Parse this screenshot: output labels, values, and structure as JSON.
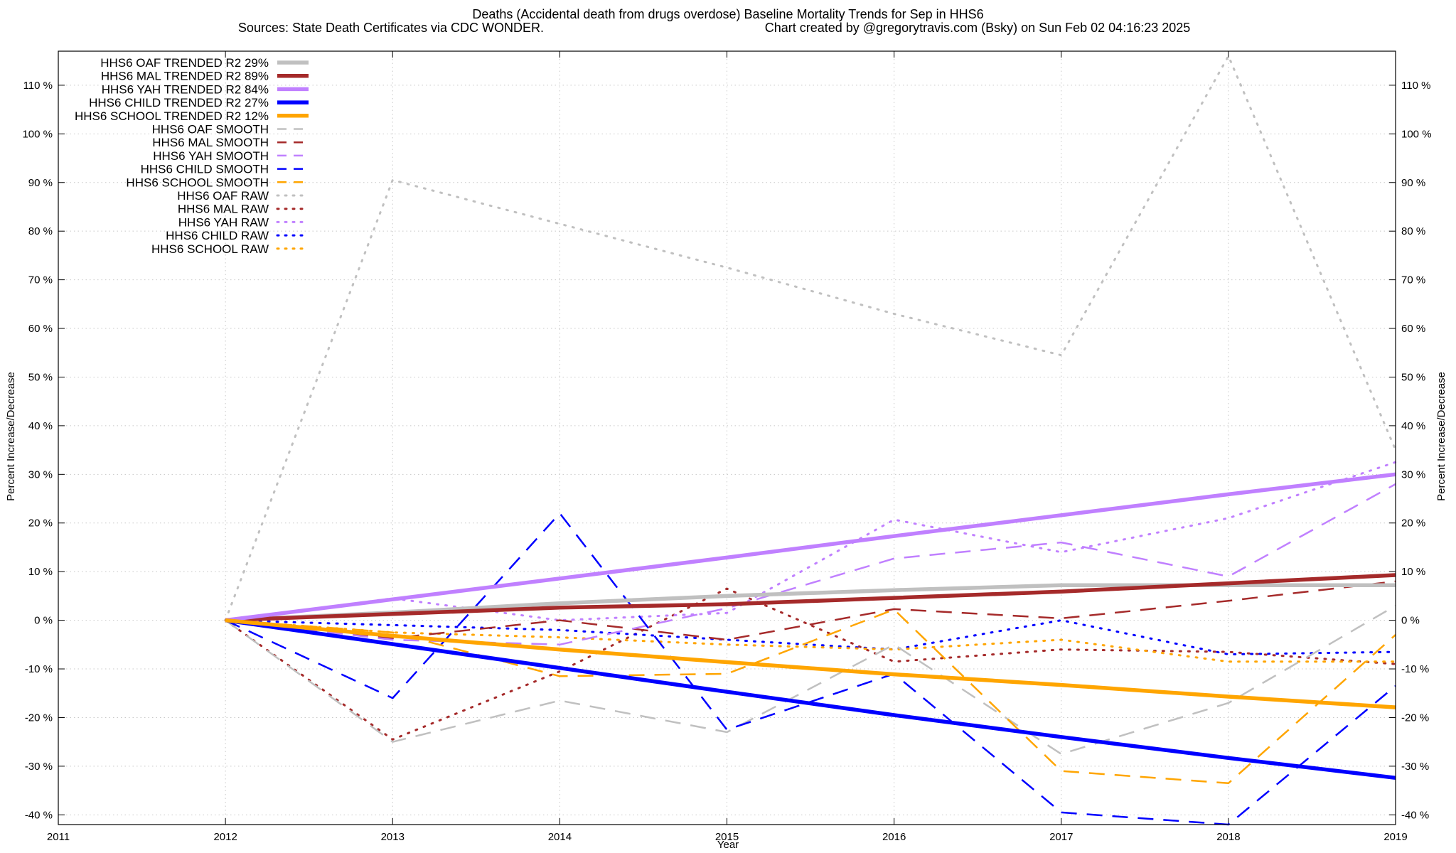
{
  "chart_data": {
    "type": "line",
    "title": "Deaths (Accidental death from drugs overdose)  Baseline Mortality Trends for Sep in HHS6",
    "subtitle_left": "Sources: State Death Certificates via CDC WONDER.",
    "subtitle_right": "Chart created by @gregorytravis.com (Bsky) on Sun Feb 02 04:16:23 2025",
    "xlabel": "Year",
    "ylabel": "Percent Increase/Decrease",
    "xlim": [
      2011,
      2019
    ],
    "ylim": [
      -42,
      117
    ],
    "x_ticks": [
      2011,
      2012,
      2013,
      2014,
      2015,
      2016,
      2017,
      2018,
      2019
    ],
    "y_ticks": [
      -40,
      -30,
      -20,
      -10,
      0,
      10,
      20,
      30,
      40,
      50,
      60,
      70,
      80,
      90,
      100,
      110
    ],
    "y_tick_suffix": " %",
    "grid": true,
    "legend_position": "top-left",
    "x": [
      2012,
      2013,
      2014,
      2015,
      2016,
      2017,
      2018,
      2019
    ],
    "series": [
      {
        "name": "HHS6 OAF TRENDED R2  29%",
        "style": "solid",
        "color": "#c0c0c0",
        "values": [
          0,
          1.6,
          3.5,
          5.0,
          6.2,
          7.2,
          7.2,
          7.2
        ]
      },
      {
        "name": "HHS6 MAL TRENDED R2  89%",
        "style": "solid",
        "color": "#a52a2a",
        "values": [
          0,
          1.3,
          2.6,
          3.3,
          4.6,
          5.9,
          7.6,
          9.3
        ]
      },
      {
        "name": "HHS6 YAH TRENDED R2  84%",
        "style": "solid",
        "color": "#c080ff",
        "values": [
          0,
          4.3,
          8.6,
          12.9,
          17.3,
          21.6,
          25.9,
          30.0
        ]
      },
      {
        "name": "HHS6 CHILD TRENDED R2  27%",
        "style": "solid",
        "color": "#0000ff",
        "values": [
          0,
          -4.9,
          -9.8,
          -14.7,
          -19.5,
          -24.0,
          -28.3,
          -32.4
        ]
      },
      {
        "name": "HHS6 SCHOOL TRENDED R2  12%",
        "style": "solid",
        "color": "#ffa500",
        "values": [
          0,
          -3.2,
          -6.0,
          -8.6,
          -11.1,
          -13.3,
          -15.7,
          -17.9
        ]
      },
      {
        "name": "HHS6 OAF SMOOTH",
        "style": "dashed",
        "color": "#c0c0c0",
        "values": [
          0,
          -25.0,
          -16.5,
          -23.0,
          -5.0,
          -27.5,
          -17.0,
          3.0
        ]
      },
      {
        "name": "HHS6 MAL SMOOTH",
        "style": "dashed",
        "color": "#a52a2a",
        "values": [
          0,
          -3.7,
          0,
          -4.0,
          2.3,
          0.4,
          4.0,
          8.0
        ]
      },
      {
        "name": "HHS6 YAH SMOOTH",
        "style": "dashed",
        "color": "#c080ff",
        "values": [
          0,
          -4.0,
          -5.0,
          2.5,
          12.7,
          16.0,
          9.0,
          28.0
        ]
      },
      {
        "name": "HHS6 CHILD SMOOTH",
        "style": "dashed",
        "color": "#0000ff",
        "values": [
          0,
          -16.0,
          22.0,
          -22.5,
          -11.0,
          -39.5,
          -42.0,
          -13.5
        ]
      },
      {
        "name": "HHS6 SCHOOL SMOOTH",
        "style": "dashed",
        "color": "#ffa500",
        "values": [
          0,
          -2.5,
          -11.5,
          -11.0,
          2.2,
          -31.0,
          -33.5,
          -3.0
        ]
      },
      {
        "name": "HHS6 OAF RAW",
        "style": "dotted",
        "color": "#c0c0c0",
        "values": [
          0,
          90.5,
          81.5,
          72.5,
          63.0,
          54.5,
          116.0,
          35.0
        ]
      },
      {
        "name": "HHS6 MAL RAW",
        "style": "dotted",
        "color": "#a52a2a",
        "values": [
          0,
          -24.5,
          -10.5,
          6.5,
          -8.5,
          -6.0,
          -6.5,
          -9.0
        ]
      },
      {
        "name": "HHS6 YAH RAW",
        "style": "dotted",
        "color": "#c080ff",
        "values": [
          0,
          4.5,
          0,
          1.5,
          20.7,
          14.0,
          21.0,
          32.5
        ]
      },
      {
        "name": "HHS6 CHILD RAW",
        "style": "dotted",
        "color": "#0000ff",
        "values": [
          0,
          -1.0,
          -2.0,
          -4.0,
          -6.0,
          0,
          -7.0,
          -6.5
        ]
      },
      {
        "name": "HHS6 SCHOOL RAW",
        "style": "dotted",
        "color": "#ffa500",
        "values": [
          0,
          -2.5,
          -3.5,
          -5.0,
          -6.0,
          -4.0,
          -8.5,
          -8.5
        ]
      }
    ]
  }
}
